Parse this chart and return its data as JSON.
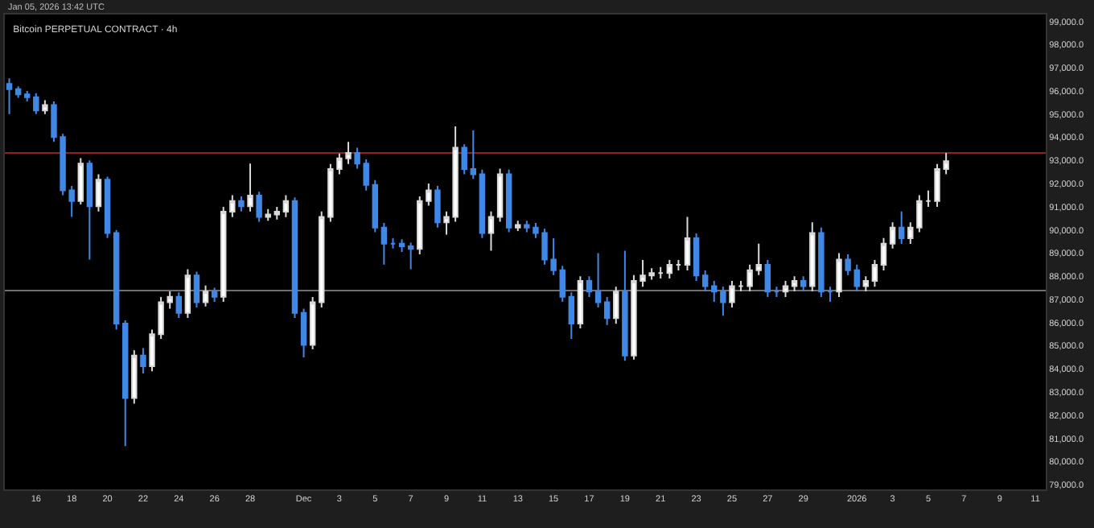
{
  "chart_data": {
    "type": "candlestick",
    "title": "Bitcoin PERPETUAL CONTRACT · 4h",
    "annotations": [
      "Jan 05, 2026 13:42 UTC"
    ],
    "x": [
      "2025-11-14T12:00",
      "2025-11-15T00:00",
      "2025-11-15T12:00",
      "2025-11-16T00:00",
      "2025-11-16T12:00",
      "2025-11-17T00:00",
      "2025-11-17T12:00",
      "2025-11-18T00:00",
      "2025-11-18T12:00",
      "2025-11-19T00:00",
      "2025-11-19T12:00",
      "2025-11-20T00:00",
      "2025-11-20T12:00",
      "2025-11-21T00:00",
      "2025-11-21T12:00",
      "2025-11-22T00:00",
      "2025-11-22T12:00",
      "2025-11-23T00:00",
      "2025-11-23T12:00",
      "2025-11-24T00:00",
      "2025-11-24T12:00",
      "2025-11-25T00:00",
      "2025-11-25T12:00",
      "2025-11-26T00:00",
      "2025-11-26T12:00",
      "2025-11-27T00:00",
      "2025-11-27T12:00",
      "2025-11-28T00:00",
      "2025-11-28T12:00",
      "2025-11-29T00:00",
      "2025-11-29T12:00",
      "2025-11-30T00:00",
      "2025-11-30T12:00",
      "2025-12-01T00:00",
      "2025-12-01T12:00",
      "2025-12-02T00:00",
      "2025-12-02T12:00",
      "2025-12-03T00:00",
      "2025-12-03T12:00",
      "2025-12-04T00:00",
      "2025-12-04T12:00",
      "2025-12-05T00:00",
      "2025-12-05T12:00",
      "2025-12-06T00:00",
      "2025-12-06T12:00",
      "2025-12-07T00:00",
      "2025-12-07T12:00",
      "2025-12-08T00:00",
      "2025-12-08T12:00",
      "2025-12-09T00:00",
      "2025-12-09T12:00",
      "2025-12-10T00:00",
      "2025-12-10T12:00",
      "2025-12-11T00:00",
      "2025-12-11T12:00",
      "2025-12-12T00:00",
      "2025-12-12T12:00",
      "2025-12-13T00:00",
      "2025-12-13T12:00",
      "2025-12-14T00:00",
      "2025-12-14T12:00",
      "2025-12-15T00:00",
      "2025-12-15T12:00",
      "2025-12-16T00:00",
      "2025-12-16T12:00",
      "2025-12-17T00:00",
      "2025-12-17T12:00",
      "2025-12-18T00:00",
      "2025-12-18T12:00",
      "2025-12-19T00:00",
      "2025-12-19T12:00",
      "2025-12-20T00:00",
      "2025-12-20T12:00",
      "2025-12-21T00:00",
      "2025-12-21T12:00",
      "2025-12-22T00:00",
      "2025-12-22T12:00",
      "2025-12-23T00:00",
      "2025-12-23T12:00",
      "2025-12-24T00:00",
      "2025-12-24T12:00",
      "2025-12-25T00:00",
      "2025-12-25T12:00",
      "2025-12-26T00:00",
      "2025-12-26T12:00",
      "2025-12-27T00:00",
      "2025-12-27T12:00",
      "2025-12-28T00:00",
      "2025-12-28T12:00",
      "2025-12-29T00:00",
      "2025-12-29T12:00",
      "2025-12-30T00:00",
      "2025-12-30T12:00",
      "2025-12-31T00:00",
      "2025-12-31T12:00",
      "2026-01-01T00:00",
      "2026-01-01T12:00",
      "2026-01-02T00:00",
      "2026-01-02T12:00",
      "2026-01-03T00:00",
      "2026-01-03T12:00",
      "2026-01-04T00:00",
      "2026-01-04T12:00",
      "2026-01-05T00:00",
      "2026-01-05T12:00",
      "2026-01-06T00:00"
    ],
    "ohlc": [
      [
        96300,
        96550,
        95000,
        96080
      ],
      [
        96080,
        96200,
        95700,
        95850
      ],
      [
        95850,
        96000,
        95550,
        95730
      ],
      [
        95730,
        95900,
        95000,
        95160
      ],
      [
        95160,
        95600,
        95000,
        95390
      ],
      [
        95390,
        95550,
        93800,
        94010
      ],
      [
        94010,
        94150,
        91500,
        91710
      ],
      [
        91710,
        91900,
        90560,
        91250
      ],
      [
        91250,
        93100,
        91100,
        92860
      ],
      [
        92860,
        93000,
        88720,
        91020
      ],
      [
        91020,
        92400,
        90800,
        92170
      ],
      [
        92170,
        92300,
        89650,
        89870
      ],
      [
        89870,
        90000,
        85700,
        85960
      ],
      [
        85960,
        86100,
        80670,
        82740
      ],
      [
        82740,
        84800,
        82500,
        84580
      ],
      [
        84580,
        84900,
        83800,
        84120
      ],
      [
        84120,
        85700,
        83900,
        85500
      ],
      [
        85500,
        87100,
        85300,
        86880
      ],
      [
        86880,
        87350,
        86600,
        87110
      ],
      [
        87110,
        87300,
        86200,
        86420
      ],
      [
        86420,
        88300,
        86200,
        88030
      ],
      [
        88030,
        88200,
        86650,
        86880
      ],
      [
        86880,
        87600,
        86700,
        87340
      ],
      [
        87340,
        87500,
        86900,
        87110
      ],
      [
        87110,
        91000,
        86900,
        90790
      ],
      [
        90790,
        91500,
        90550,
        91250
      ],
      [
        91250,
        91450,
        90800,
        91020
      ],
      [
        91020,
        92860,
        90800,
        91480
      ],
      [
        91480,
        91650,
        90350,
        90560
      ],
      [
        90560,
        90900,
        90400,
        90670
      ],
      [
        90670,
        91000,
        90450,
        90790
      ],
      [
        90790,
        91500,
        90550,
        91250
      ],
      [
        91250,
        91400,
        86200,
        86420
      ],
      [
        86420,
        86600,
        84500,
        85040
      ],
      [
        85040,
        87100,
        84850,
        86880
      ],
      [
        86880,
        90800,
        86650,
        90560
      ],
      [
        90560,
        92850,
        90350,
        92630
      ],
      [
        92630,
        93300,
        92400,
        93090
      ],
      [
        93090,
        93800,
        92850,
        93320
      ],
      [
        93320,
        93550,
        92650,
        92860
      ],
      [
        92860,
        93050,
        91700,
        91940
      ],
      [
        91940,
        92150,
        89900,
        90100
      ],
      [
        90100,
        90300,
        88500,
        89410
      ],
      [
        89410,
        89650,
        89200,
        89410
      ],
      [
        89410,
        89600,
        89050,
        89290
      ],
      [
        89290,
        89450,
        88300,
        89180
      ],
      [
        89180,
        91450,
        88950,
        91250
      ],
      [
        91250,
        92000,
        91050,
        91710
      ],
      [
        91710,
        91900,
        90100,
        90330
      ],
      [
        90330,
        90800,
        89800,
        90560
      ],
      [
        90560,
        94470,
        90350,
        93550
      ],
      [
        93550,
        93700,
        92400,
        92630
      ],
      [
        92630,
        94300,
        92200,
        92400
      ],
      [
        92400,
        92600,
        89650,
        89870
      ],
      [
        89870,
        90800,
        89100,
        90560
      ],
      [
        90560,
        92650,
        90350,
        92400
      ],
      [
        92400,
        92600,
        89900,
        90100
      ],
      [
        90100,
        90400,
        89950,
        90210
      ],
      [
        90210,
        90400,
        89900,
        90100
      ],
      [
        90100,
        90300,
        89650,
        89870
      ],
      [
        89870,
        90050,
        88500,
        88720
      ],
      [
        88720,
        89640,
        88050,
        88260
      ],
      [
        88260,
        88450,
        86900,
        87110
      ],
      [
        87110,
        87300,
        85300,
        85960
      ],
      [
        85960,
        88000,
        85750,
        87800
      ],
      [
        87800,
        88000,
        87100,
        87340
      ],
      [
        87340,
        89000,
        86650,
        86880
      ],
      [
        86880,
        87100,
        85900,
        86190
      ],
      [
        86190,
        87550,
        85950,
        87340
      ],
      [
        87340,
        89100,
        84350,
        84580
      ],
      [
        84580,
        88050,
        84400,
        87800
      ],
      [
        87800,
        88700,
        87550,
        88030
      ],
      [
        88030,
        88350,
        87850,
        88140
      ],
      [
        88140,
        88400,
        87900,
        88140
      ],
      [
        88140,
        88700,
        87900,
        88490
      ],
      [
        88490,
        88700,
        88250,
        88490
      ],
      [
        88490,
        90560,
        88250,
        89640
      ],
      [
        89640,
        89850,
        87800,
        88030
      ],
      [
        88030,
        88250,
        87350,
        87570
      ],
      [
        87570,
        87800,
        86900,
        87340
      ],
      [
        87340,
        87550,
        86300,
        86880
      ],
      [
        86880,
        87800,
        86650,
        87570
      ],
      [
        87570,
        87800,
        87350,
        87570
      ],
      [
        87570,
        88500,
        87350,
        88260
      ],
      [
        88260,
        89410,
        88050,
        88490
      ],
      [
        88490,
        88700,
        87100,
        87340
      ],
      [
        87340,
        87550,
        87100,
        87340
      ],
      [
        87340,
        87800,
        87100,
        87570
      ],
      [
        87570,
        88000,
        87350,
        87800
      ],
      [
        87800,
        88000,
        87350,
        87570
      ],
      [
        87570,
        90330,
        87350,
        89870
      ],
      [
        89870,
        90100,
        87100,
        87340
      ],
      [
        87340,
        87550,
        86900,
        87340
      ],
      [
        87340,
        89000,
        87100,
        88720
      ],
      [
        88720,
        88950,
        88050,
        88260
      ],
      [
        88260,
        88500,
        87350,
        87570
      ],
      [
        87570,
        88000,
        87350,
        87800
      ],
      [
        87800,
        88700,
        87550,
        88490
      ],
      [
        88490,
        89650,
        88250,
        89410
      ],
      [
        89410,
        90330,
        89200,
        90100
      ],
      [
        90100,
        90800,
        89400,
        89640
      ],
      [
        89640,
        90330,
        89400,
        90100
      ],
      [
        90100,
        91500,
        89900,
        91250
      ],
      [
        91250,
        91700,
        91000,
        91250
      ],
      [
        91250,
        92850,
        91000,
        92630
      ],
      [
        92630,
        93320,
        92400,
        92970
      ]
    ],
    "xlim": [
      "2025-11-14T06:00",
      "2026-01-11T14:00"
    ],
    "xticks": [
      {
        "value": "2025-11-16",
        "label": "16"
      },
      {
        "value": "2025-11-18",
        "label": "18"
      },
      {
        "value": "2025-11-20",
        "label": "20"
      },
      {
        "value": "2025-11-22",
        "label": "22"
      },
      {
        "value": "2025-11-24",
        "label": "24"
      },
      {
        "value": "2025-11-26",
        "label": "26"
      },
      {
        "value": "2025-11-28",
        "label": "28"
      },
      {
        "value": "2025-12-01",
        "label": "Dec"
      },
      {
        "value": "2025-12-03",
        "label": "3"
      },
      {
        "value": "2025-12-05",
        "label": "5"
      },
      {
        "value": "2025-12-07",
        "label": "7"
      },
      {
        "value": "2025-12-09",
        "label": "9"
      },
      {
        "value": "2025-12-11",
        "label": "11"
      },
      {
        "value": "2025-12-13",
        "label": "13"
      },
      {
        "value": "2025-12-15",
        "label": "15"
      },
      {
        "value": "2025-12-17",
        "label": "17"
      },
      {
        "value": "2025-12-19",
        "label": "19"
      },
      {
        "value": "2025-12-21",
        "label": "21"
      },
      {
        "value": "2025-12-23",
        "label": "23"
      },
      {
        "value": "2025-12-25",
        "label": "25"
      },
      {
        "value": "2025-12-27",
        "label": "27"
      },
      {
        "value": "2025-12-29",
        "label": "29"
      },
      {
        "value": "2026-01-01",
        "label": "2026"
      },
      {
        "value": "2026-01-03",
        "label": "3"
      },
      {
        "value": "2026-01-05",
        "label": "5"
      },
      {
        "value": "2026-01-07",
        "label": "7"
      },
      {
        "value": "2026-01-09",
        "label": "9"
      },
      {
        "value": "2026-01-11",
        "label": "11"
      }
    ],
    "ylim": [
      78800,
      99300
    ],
    "yticks": [
      {
        "value": 79000,
        "label": "79,000.0"
      },
      {
        "value": 80000,
        "label": "80,000.0"
      },
      {
        "value": 81000,
        "label": "81,000.0"
      },
      {
        "value": 82000,
        "label": "82,000.0"
      },
      {
        "value": 83000,
        "label": "83,000.0"
      },
      {
        "value": 84000,
        "label": "84,000.0"
      },
      {
        "value": 85000,
        "label": "85,000.0"
      },
      {
        "value": 86000,
        "label": "86,000.0"
      },
      {
        "value": 87000,
        "label": "87,000.0"
      },
      {
        "value": 88000,
        "label": "88,000.0"
      },
      {
        "value": 89000,
        "label": "89,000.0"
      },
      {
        "value": 90000,
        "label": "90,000.0"
      },
      {
        "value": 91000,
        "label": "91,000.0"
      },
      {
        "value": 92000,
        "label": "92,000.0"
      },
      {
        "value": 93000,
        "label": "93,000.0"
      },
      {
        "value": 94000,
        "label": "94,000.0"
      },
      {
        "value": 95000,
        "label": "95,000.0"
      },
      {
        "value": 96000,
        "label": "96,000.0"
      },
      {
        "value": 97000,
        "label": "97,000.0"
      },
      {
        "value": 98000,
        "label": "98,000.0"
      },
      {
        "value": 99000,
        "label": "99,000.0"
      }
    ],
    "ref_lines": [
      {
        "axis": "y",
        "value": 93320,
        "color": "#8e1f24"
      },
      {
        "axis": "y",
        "value": 87380,
        "color": "#6e6e6e"
      }
    ],
    "grid": false
  }
}
